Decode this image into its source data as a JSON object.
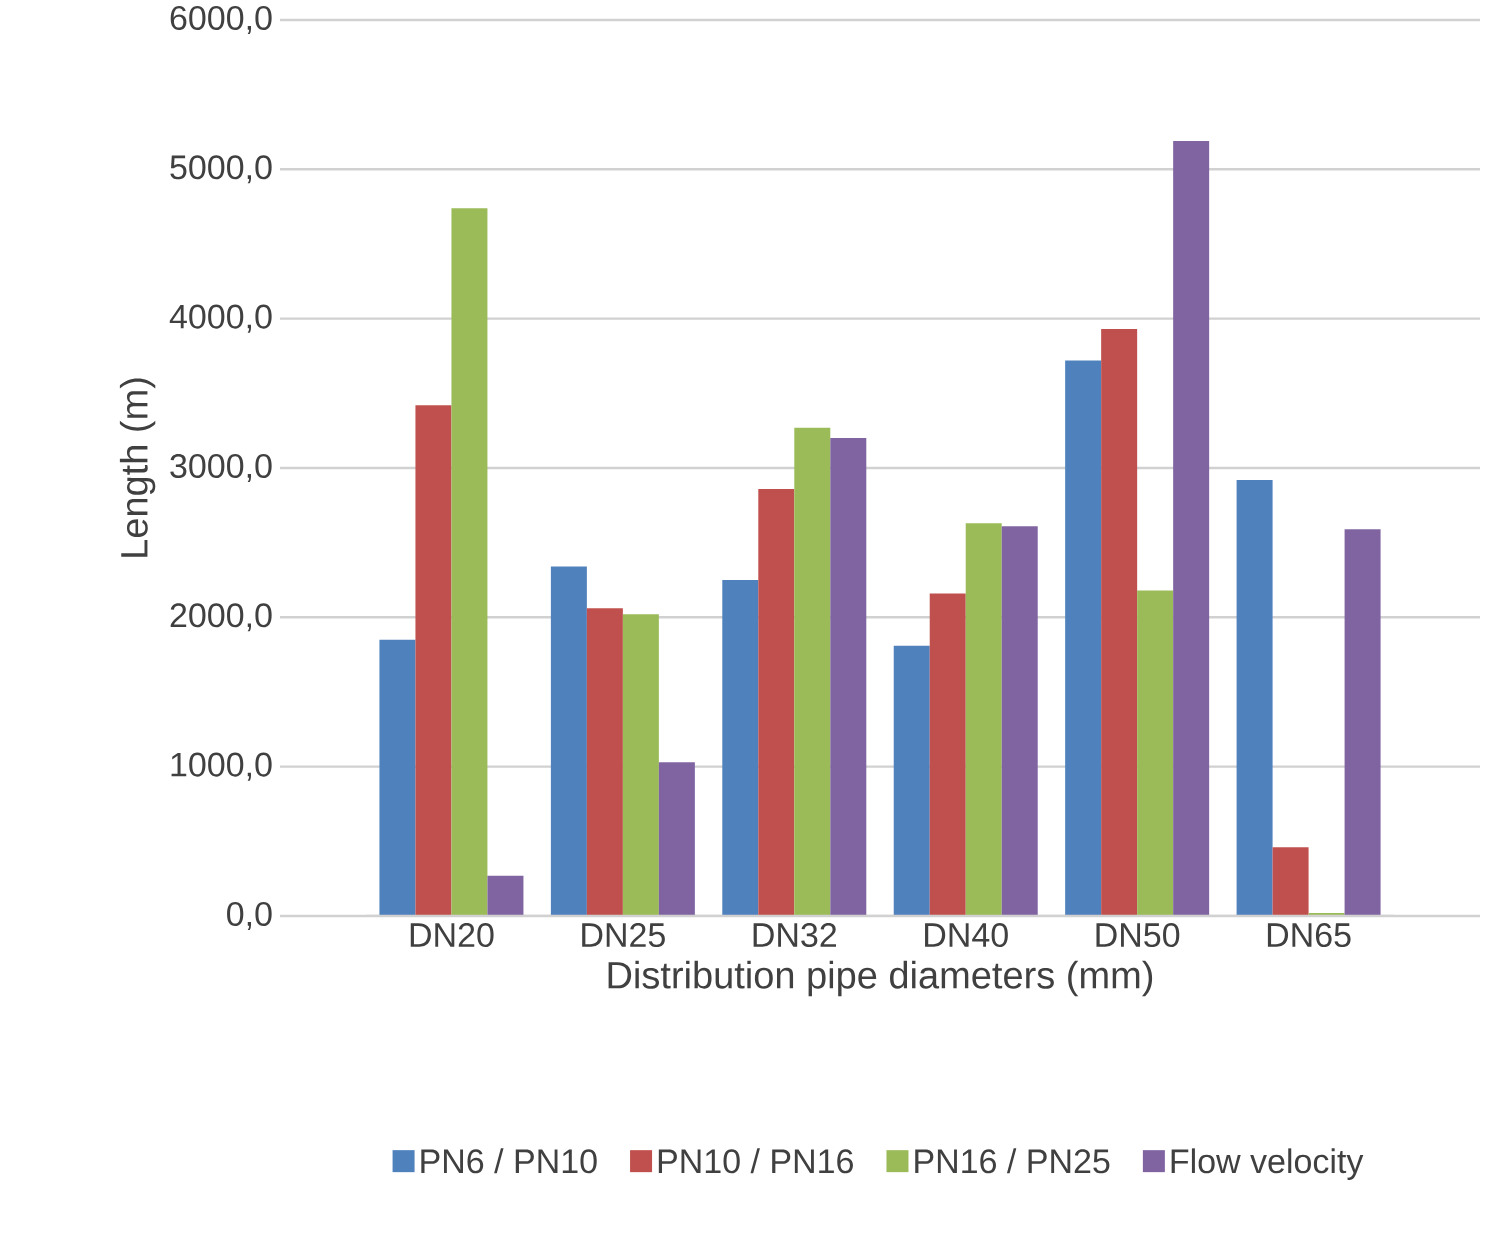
{
  "chart_data": {
    "type": "bar",
    "xlabel": "Distribution pipe diameters (mm)",
    "ylabel": "Length (m)",
    "categories": [
      "DN20",
      "DN25",
      "DN32",
      "DN40",
      "DN50",
      "DN65"
    ],
    "series": [
      {
        "name": "PN6 / PN10",
        "color": "#4f81bd",
        "values": [
          1850,
          2340,
          2250,
          1810,
          3720,
          2920
        ]
      },
      {
        "name": "PN10 / PN16",
        "color": "#c0504d",
        "values": [
          3420,
          2060,
          2860,
          2160,
          3930,
          460
        ]
      },
      {
        "name": "PN16 / PN25",
        "color": "#9bbb59",
        "values": [
          4740,
          2020,
          3270,
          2630,
          2180,
          20
        ]
      },
      {
        "name": "Flow velocity",
        "color": "#8064a2",
        "values": [
          270,
          1030,
          3200,
          2610,
          5190,
          2590
        ]
      }
    ],
    "ylim": [
      0,
      6000
    ],
    "yticks": [
      {
        "value": 0,
        "label": "0,0"
      },
      {
        "value": 1000,
        "label": "1000,0"
      },
      {
        "value": 2000,
        "label": "2000,0"
      },
      {
        "value": 3000,
        "label": "3000,0"
      },
      {
        "value": 4000,
        "label": "4000,0"
      },
      {
        "value": 5000,
        "label": "5000,0"
      },
      {
        "value": 6000,
        "label": "6000,0"
      }
    ],
    "grid": "y",
    "legend": "bottom"
  }
}
